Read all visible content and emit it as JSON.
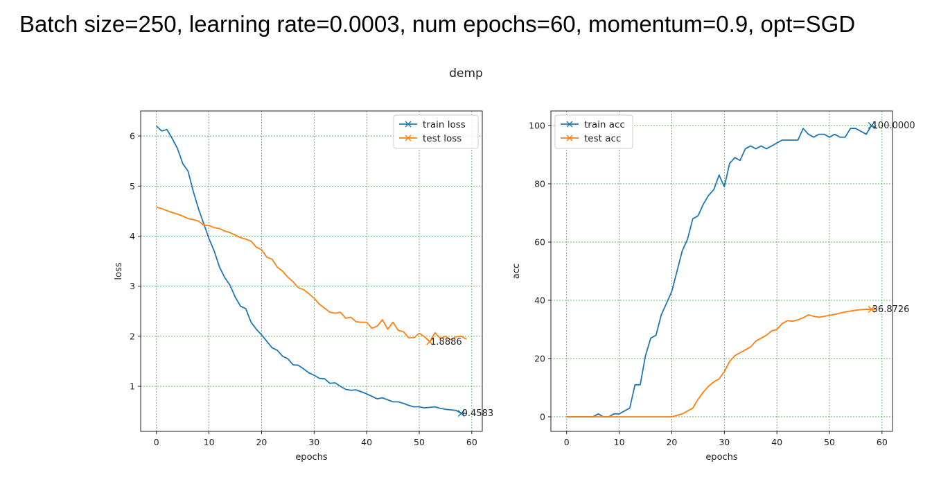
{
  "slide": {
    "title": "Batch size=250, learning rate=0.0003, num epochs=60, momentum=0.9, opt=SGD"
  },
  "figure": {
    "suptitle": "demp"
  },
  "colors": {
    "train": "#1f77b4",
    "test": "#ff7f0e",
    "grid": "#2ca02c"
  },
  "chart_data": [
    {
      "type": "line",
      "title": "",
      "xlabel": "epochs",
      "ylabel": "loss",
      "xlim": [
        -3,
        62
      ],
      "ylim": [
        0.1,
        6.5
      ],
      "xticks": [
        0,
        10,
        20,
        30,
        40,
        50,
        60
      ],
      "yticks": [
        1,
        2,
        3,
        4,
        5,
        6
      ],
      "grid": true,
      "legend": "top-right",
      "series": [
        {
          "name": "train loss",
          "color_key": "train",
          "x": [
            0,
            1,
            2,
            3,
            4,
            5,
            6,
            7,
            8,
            9,
            10,
            11,
            12,
            13,
            14,
            15,
            16,
            17,
            18,
            19,
            20,
            21,
            22,
            23,
            24,
            25,
            26,
            27,
            28,
            29,
            30,
            31,
            32,
            33,
            34,
            35,
            36,
            37,
            38,
            39,
            40,
            41,
            42,
            43,
            44,
            45,
            46,
            47,
            48,
            49,
            50,
            51,
            52,
            53,
            54,
            55,
            56,
            57,
            58,
            59
          ],
          "y": [
            6.2,
            6.1,
            6.13,
            5.95,
            5.75,
            5.45,
            5.3,
            4.9,
            4.55,
            4.25,
            3.95,
            3.7,
            3.38,
            3.17,
            3.02,
            2.78,
            2.6,
            2.55,
            2.28,
            2.14,
            2.03,
            1.9,
            1.77,
            1.72,
            1.6,
            1.55,
            1.43,
            1.42,
            1.35,
            1.27,
            1.22,
            1.16,
            1.15,
            1.06,
            1.07,
            1.0,
            0.94,
            0.92,
            0.93,
            0.89,
            0.85,
            0.8,
            0.75,
            0.77,
            0.73,
            0.69,
            0.69,
            0.66,
            0.62,
            0.59,
            0.59,
            0.57,
            0.58,
            0.59,
            0.56,
            0.54,
            0.53,
            0.52,
            0.46,
            0.46
          ],
          "marker_index": 58,
          "annotation": "0.4583"
        },
        {
          "name": "test loss",
          "color_key": "test",
          "x": [
            0,
            1,
            2,
            3,
            4,
            5,
            6,
            7,
            8,
            9,
            10,
            11,
            12,
            13,
            14,
            15,
            16,
            17,
            18,
            19,
            20,
            21,
            22,
            23,
            24,
            25,
            26,
            27,
            28,
            29,
            30,
            31,
            32,
            33,
            34,
            35,
            36,
            37,
            38,
            39,
            40,
            41,
            42,
            43,
            44,
            45,
            46,
            47,
            48,
            49,
            50,
            51,
            52,
            53,
            54,
            55,
            56,
            57,
            58,
            59
          ],
          "y": [
            4.58,
            4.55,
            4.51,
            4.47,
            4.44,
            4.4,
            4.35,
            4.33,
            4.3,
            4.22,
            4.21,
            4.17,
            4.15,
            4.1,
            4.07,
            4.02,
            3.97,
            3.94,
            3.9,
            3.78,
            3.73,
            3.58,
            3.54,
            3.38,
            3.3,
            3.18,
            3.09,
            2.97,
            2.93,
            2.85,
            2.76,
            2.64,
            2.56,
            2.48,
            2.46,
            2.48,
            2.36,
            2.38,
            2.29,
            2.28,
            2.28,
            2.16,
            2.2,
            2.33,
            2.14,
            2.28,
            2.12,
            2.09,
            1.97,
            1.97,
            2.06,
            1.99,
            1.89,
            2.07,
            1.96,
            2.0,
            1.93,
            1.99,
            2.0,
            1.94
          ],
          "marker_index": 52,
          "annotation": "1.8886"
        }
      ]
    },
    {
      "type": "line",
      "title": "",
      "xlabel": "epochs",
      "ylabel": "acc",
      "xlim": [
        -3,
        62
      ],
      "ylim": [
        -5,
        105
      ],
      "xticks": [
        0,
        10,
        20,
        30,
        40,
        50,
        60
      ],
      "yticks": [
        0,
        20,
        40,
        60,
        80,
        100
      ],
      "grid": true,
      "legend": "top-left",
      "series": [
        {
          "name": "train acc",
          "color_key": "train",
          "x": [
            0,
            1,
            2,
            3,
            4,
            5,
            6,
            7,
            8,
            9,
            10,
            11,
            12,
            13,
            14,
            15,
            16,
            17,
            18,
            19,
            20,
            21,
            22,
            23,
            24,
            25,
            26,
            27,
            28,
            29,
            30,
            31,
            32,
            33,
            34,
            35,
            36,
            37,
            38,
            39,
            40,
            41,
            42,
            43,
            44,
            45,
            46,
            47,
            48,
            49,
            50,
            51,
            52,
            53,
            54,
            55,
            56,
            57,
            58,
            59
          ],
          "y": [
            0,
            0,
            0,
            0,
            0,
            0,
            1,
            0,
            0,
            1,
            1,
            2,
            3,
            11,
            11,
            21,
            27,
            28,
            35,
            39,
            43,
            50,
            57,
            61,
            68,
            69,
            73,
            76,
            78,
            83,
            79,
            87,
            89,
            88,
            92,
            93,
            92,
            93,
            92,
            93,
            94,
            95,
            95,
            95,
            95,
            99,
            97,
            96,
            97,
            97,
            96,
            97,
            96,
            96,
            99,
            99,
            98,
            97,
            100,
            99
          ],
          "marker_index": 58,
          "annotation": "100.0000"
        },
        {
          "name": "test acc",
          "color_key": "test",
          "x": [
            0,
            1,
            2,
            3,
            4,
            5,
            6,
            7,
            8,
            9,
            10,
            11,
            12,
            13,
            14,
            15,
            16,
            17,
            18,
            19,
            20,
            21,
            22,
            23,
            24,
            25,
            26,
            27,
            28,
            29,
            30,
            31,
            32,
            33,
            34,
            35,
            36,
            37,
            38,
            39,
            40,
            41,
            42,
            43,
            44,
            45,
            46,
            47,
            48,
            49,
            50,
            51,
            52,
            53,
            54,
            55,
            56,
            57,
            58,
            59
          ],
          "y": [
            0,
            0,
            0,
            0,
            0,
            0,
            0,
            0,
            0,
            0,
            0,
            0,
            0,
            0,
            0,
            0,
            0,
            0,
            0,
            0,
            0,
            0.5,
            1,
            2,
            3,
            6,
            8.5,
            10.5,
            12,
            13,
            15.5,
            19,
            21,
            22,
            23,
            24,
            26,
            27,
            28,
            29.5,
            30,
            32,
            33,
            32.8,
            33.3,
            34,
            35,
            34.5,
            34.2,
            34.5,
            34.8,
            35.2,
            35.6,
            36,
            36.3,
            36.6,
            36.8,
            36.9,
            36.87,
            37.0
          ],
          "marker_index": 58,
          "annotation": "36.8726"
        }
      ]
    }
  ]
}
